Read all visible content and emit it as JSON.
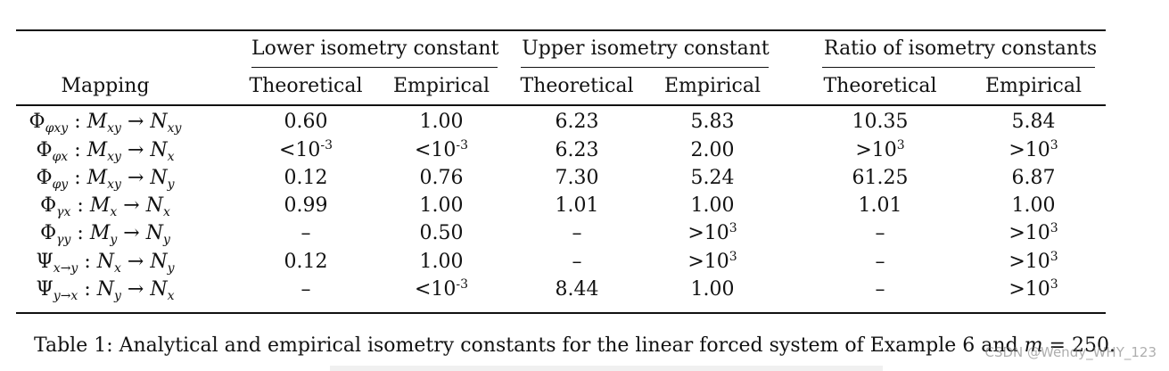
{
  "table": {
    "headers": {
      "mapping": "Mapping",
      "groups": [
        "Lower isometry constant",
        "Upper isometry constant",
        "Ratio of isometry constants"
      ],
      "sub": [
        "Theoretical",
        "Empirical",
        "Theoretical",
        "Empirical",
        "Theoretical",
        "Empirical"
      ]
    },
    "rows": [
      {
        "map": {
          "op": "Φ",
          "sub": "φxy",
          "from": "M",
          "from_sub": "xy",
          "to": "N",
          "to_sub": "xy"
        },
        "values": [
          {
            "base": "0.60",
            "exp": ""
          },
          {
            "base": "1.00",
            "exp": ""
          },
          {
            "base": "6.23",
            "exp": ""
          },
          {
            "base": "5.83",
            "exp": ""
          },
          {
            "base": "10.35",
            "exp": ""
          },
          {
            "base": "5.84",
            "exp": ""
          }
        ]
      },
      {
        "map": {
          "op": "Φ",
          "sub": "φx",
          "from": "M",
          "from_sub": "xy",
          "to": "N",
          "to_sub": "x"
        },
        "values": [
          {
            "base": "<10",
            "exp": "-3"
          },
          {
            "base": "<10",
            "exp": "-3"
          },
          {
            "base": "6.23",
            "exp": ""
          },
          {
            "base": "2.00",
            "exp": ""
          },
          {
            "base": ">10",
            "exp": "3"
          },
          {
            "base": ">10",
            "exp": "3"
          }
        ]
      },
      {
        "map": {
          "op": "Φ",
          "sub": "φy",
          "from": "M",
          "from_sub": "xy",
          "to": "N",
          "to_sub": "y"
        },
        "values": [
          {
            "base": "0.12",
            "exp": ""
          },
          {
            "base": "0.76",
            "exp": ""
          },
          {
            "base": "7.30",
            "exp": ""
          },
          {
            "base": "5.24",
            "exp": ""
          },
          {
            "base": "61.25",
            "exp": ""
          },
          {
            "base": "6.87",
            "exp": ""
          }
        ]
      },
      {
        "map": {
          "op": "Φ",
          "sub": "γx",
          "from": "M",
          "from_sub": "x",
          "to": "N",
          "to_sub": "x"
        },
        "values": [
          {
            "base": "0.99",
            "exp": ""
          },
          {
            "base": "1.00",
            "exp": ""
          },
          {
            "base": "1.01",
            "exp": ""
          },
          {
            "base": "1.00",
            "exp": ""
          },
          {
            "base": "1.01",
            "exp": ""
          },
          {
            "base": "1.00",
            "exp": ""
          }
        ]
      },
      {
        "map": {
          "op": "Φ",
          "sub": "γy",
          "from": "M",
          "from_sub": "y",
          "to": "N",
          "to_sub": "y"
        },
        "values": [
          {
            "base": "–",
            "exp": ""
          },
          {
            "base": "0.50",
            "exp": ""
          },
          {
            "base": "–",
            "exp": ""
          },
          {
            "base": ">10",
            "exp": "3"
          },
          {
            "base": "–",
            "exp": ""
          },
          {
            "base": ">10",
            "exp": "3"
          }
        ]
      },
      {
        "map": {
          "op": "Ψ",
          "sub": "x→y",
          "from": "N",
          "from_sub": "x",
          "to": "N",
          "to_sub": "y"
        },
        "values": [
          {
            "base": "0.12",
            "exp": ""
          },
          {
            "base": "1.00",
            "exp": ""
          },
          {
            "base": "–",
            "exp": ""
          },
          {
            "base": ">10",
            "exp": "3"
          },
          {
            "base": "–",
            "exp": ""
          },
          {
            "base": ">10",
            "exp": "3"
          }
        ]
      },
      {
        "map": {
          "op": "Ψ",
          "sub": "y→x",
          "from": "N",
          "from_sub": "y",
          "to": "N",
          "to_sub": "x"
        },
        "values": [
          {
            "base": "–",
            "exp": ""
          },
          {
            "base": "<10",
            "exp": "-3"
          },
          {
            "base": "8.44",
            "exp": ""
          },
          {
            "base": "1.00",
            "exp": ""
          },
          {
            "base": "–",
            "exp": ""
          },
          {
            "base": ">10",
            "exp": "3"
          }
        ]
      }
    ]
  },
  "caption": {
    "text": "Table 1: Analytical and empirical isometry constants for the linear forced system of Example 6 and ",
    "var": "m",
    "eq": " = 250."
  },
  "watermark": "CSDN @Wendy_WHY_123"
}
